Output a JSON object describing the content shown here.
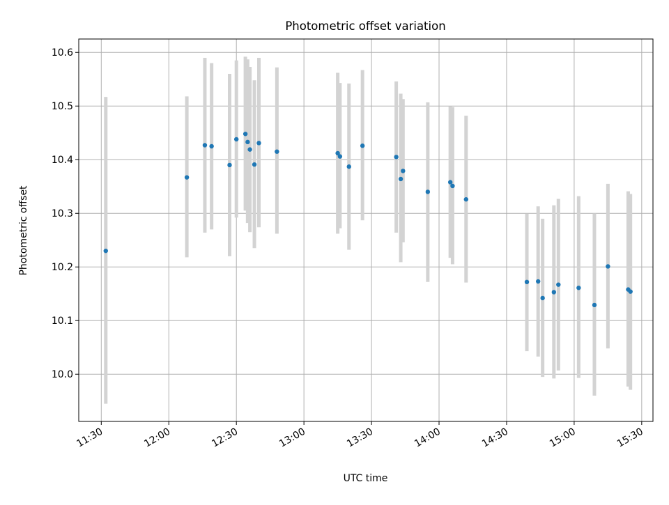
{
  "chart_data": {
    "type": "scatter",
    "title": "Photometric offset variation",
    "xlabel": "UTC time",
    "ylabel": "Photometric offset",
    "x_ticks": [
      "11:30",
      "12:00",
      "12:30",
      "13:00",
      "13:30",
      "14:00",
      "14:30",
      "15:00",
      "15:30"
    ],
    "y_ticks": [
      "10.0",
      "10.1",
      "10.2",
      "10.3",
      "10.4",
      "10.5",
      "10.6"
    ],
    "xlim": [
      "11:20",
      "15:35"
    ],
    "ylim": [
      9.912,
      10.625
    ],
    "grid": true,
    "legend": "none",
    "colors": {
      "points": "#1f77b4",
      "errorbars": "#d3d3d3",
      "grid": "#b0b0b0"
    },
    "series": [
      {
        "points": [
          {
            "x": "11:32",
            "y": 10.23,
            "ylow": 9.945,
            "yhigh": 10.517
          },
          {
            "x": "12:08",
            "y": 10.367,
            "ylow": 10.218,
            "yhigh": 10.518
          },
          {
            "x": "12:16",
            "y": 10.427,
            "ylow": 10.264,
            "yhigh": 10.59
          },
          {
            "x": "12:19",
            "y": 10.425,
            "ylow": 10.27,
            "yhigh": 10.58
          },
          {
            "x": "12:27",
            "y": 10.39,
            "ylow": 10.22,
            "yhigh": 10.56
          },
          {
            "x": "12:30",
            "y": 10.438,
            "ylow": 10.292,
            "yhigh": 10.585
          },
          {
            "x": "12:34",
            "y": 10.448,
            "ylow": 10.305,
            "yhigh": 10.592
          },
          {
            "x": "12:35",
            "y": 10.433,
            "ylow": 10.282,
            "yhigh": 10.587
          },
          {
            "x": "12:36",
            "y": 10.419,
            "ylow": 10.265,
            "yhigh": 10.573
          },
          {
            "x": "12:38",
            "y": 10.391,
            "ylow": 10.235,
            "yhigh": 10.548
          },
          {
            "x": "12:40",
            "y": 10.431,
            "ylow": 10.274,
            "yhigh": 10.59
          },
          {
            "x": "12:48",
            "y": 10.415,
            "ylow": 10.262,
            "yhigh": 10.572
          },
          {
            "x": "13:15",
            "y": 10.412,
            "ylow": 10.262,
            "yhigh": 10.562
          },
          {
            "x": "13:16",
            "y": 10.406,
            "ylow": 10.272,
            "yhigh": 10.543
          },
          {
            "x": "13:20",
            "y": 10.387,
            "ylow": 10.232,
            "yhigh": 10.542
          },
          {
            "x": "13:26",
            "y": 10.426,
            "ylow": 10.287,
            "yhigh": 10.567
          },
          {
            "x": "13:41",
            "y": 10.405,
            "ylow": 10.264,
            "yhigh": 10.546
          },
          {
            "x": "13:43",
            "y": 10.364,
            "ylow": 10.209,
            "yhigh": 10.523
          },
          {
            "x": "13:44",
            "y": 10.379,
            "ylow": 10.246,
            "yhigh": 10.513
          },
          {
            "x": "13:55",
            "y": 10.34,
            "ylow": 10.172,
            "yhigh": 10.507
          },
          {
            "x": "14:05",
            "y": 10.358,
            "ylow": 10.217,
            "yhigh": 10.499
          },
          {
            "x": "14:06",
            "y": 10.351,
            "ylow": 10.205,
            "yhigh": 10.498
          },
          {
            "x": "14:12",
            "y": 10.326,
            "ylow": 10.171,
            "yhigh": 10.482
          },
          {
            "x": "14:39",
            "y": 10.172,
            "ylow": 10.043,
            "yhigh": 10.299
          },
          {
            "x": "14:44",
            "y": 10.173,
            "ylow": 10.033,
            "yhigh": 10.313
          },
          {
            "x": "14:46",
            "y": 10.142,
            "ylow": 9.995,
            "yhigh": 10.29
          },
          {
            "x": "14:51",
            "y": 10.153,
            "ylow": 9.992,
            "yhigh": 10.315
          },
          {
            "x": "14:53",
            "y": 10.167,
            "ylow": 10.007,
            "yhigh": 10.327
          },
          {
            "x": "15:02",
            "y": 10.161,
            "ylow": 9.993,
            "yhigh": 10.332
          },
          {
            "x": "15:09",
            "y": 10.129,
            "ylow": 9.96,
            "yhigh": 10.3
          },
          {
            "x": "15:15",
            "y": 10.201,
            "ylow": 10.048,
            "yhigh": 10.355
          },
          {
            "x": "15:24",
            "y": 10.158,
            "ylow": 9.977,
            "yhigh": 10.341
          },
          {
            "x": "15:25",
            "y": 10.154,
            "ylow": 9.971,
            "yhigh": 10.336
          }
        ]
      }
    ]
  }
}
